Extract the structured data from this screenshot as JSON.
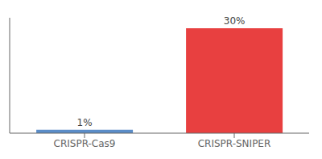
{
  "chart_data": {
    "type": "bar",
    "categories": [
      "CRISPR-Cas9",
      "CRISPR-SNIPER"
    ],
    "values": [
      1,
      30
    ],
    "value_labels": [
      "1%",
      "30%"
    ],
    "colors": [
      "#5B8DC8",
      "#E84040"
    ],
    "ylim": [
      0,
      33
    ],
    "data_labels": true,
    "tick_labels": "x",
    "grid": false
  }
}
